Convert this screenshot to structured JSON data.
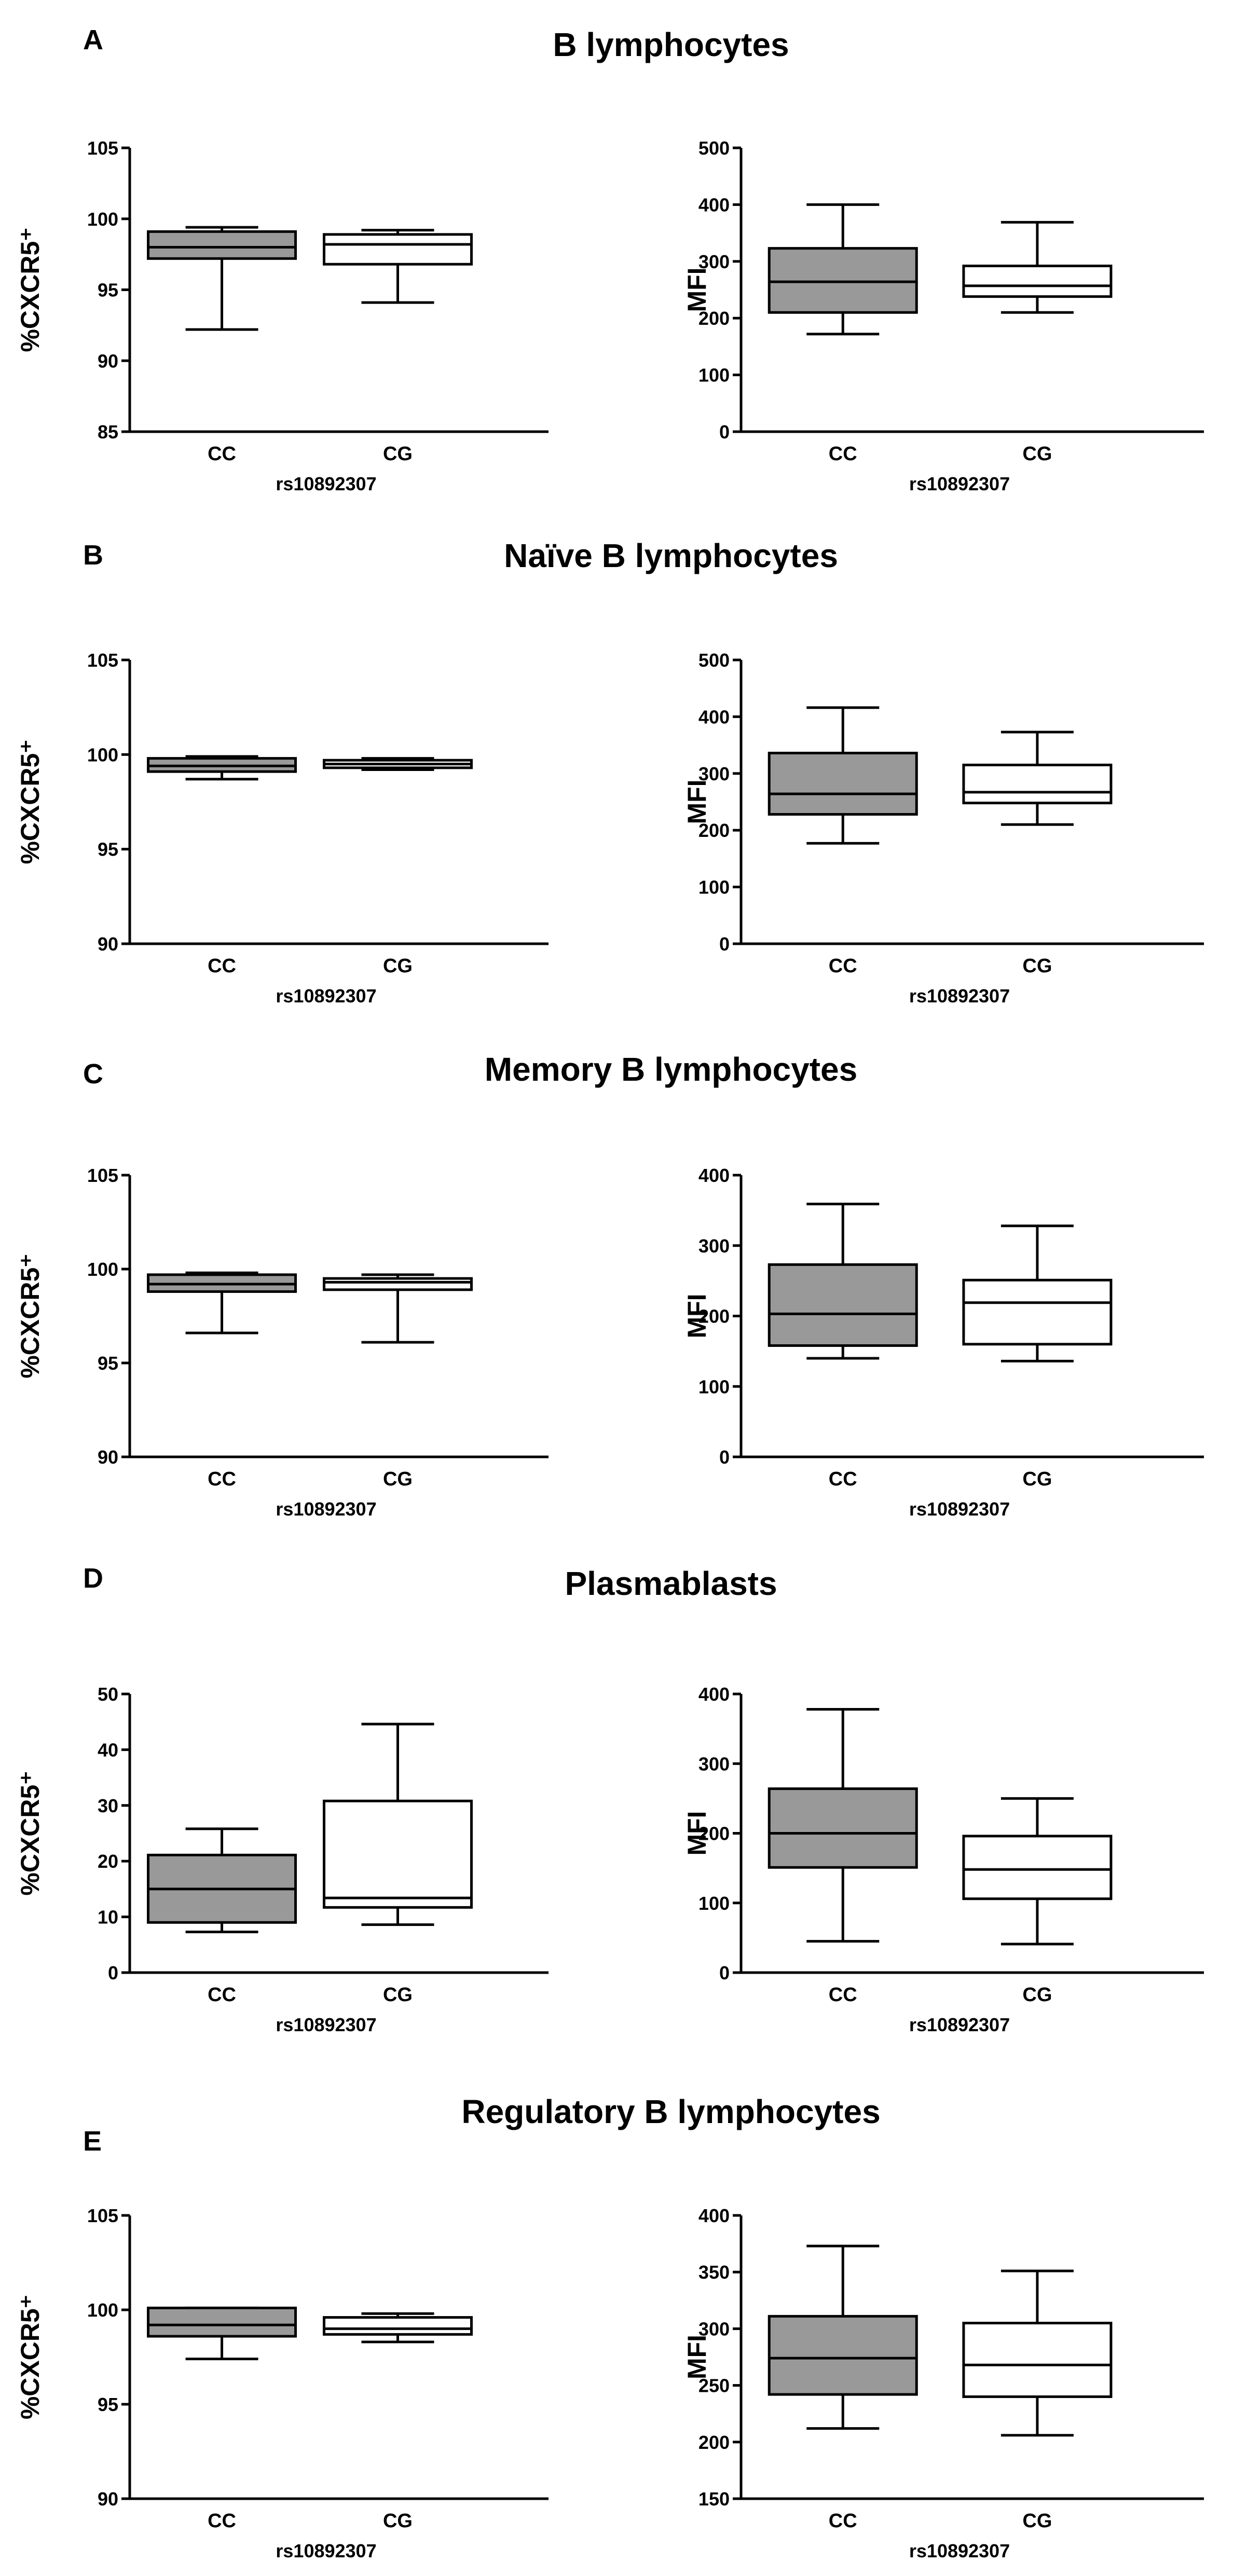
{
  "colors": {
    "cc_fill": "#999999",
    "cg_fill": "#ffffff",
    "stroke": "#000000"
  },
  "panels": [
    {
      "letter": "A",
      "title": "B lymphocytes"
    },
    {
      "letter": "B",
      "title": "Naïve B lymphocytes"
    },
    {
      "letter": "C",
      "title": "Memory B lymphocytes"
    },
    {
      "letter": "D",
      "title": "Plasmablasts"
    },
    {
      "letter": "E",
      "title": "Regulatory B lymphocytes"
    }
  ],
  "chart_data": [
    {
      "type": "box",
      "panel": "A",
      "side": "left",
      "xlabel": "rs10892307",
      "ylabel": "%CXCR5⁺",
      "categories": [
        "CC",
        "CG"
      ],
      "ylim": [
        85,
        105
      ],
      "yticks": [
        85,
        90,
        95,
        100,
        105
      ],
      "boxes": [
        {
          "min": 92.2,
          "q1": 97.2,
          "median": 98.0,
          "q3": 99.1,
          "max": 99.4
        },
        {
          "min": 94.1,
          "q1": 96.8,
          "median": 98.2,
          "q3": 98.9,
          "max": 99.2
        }
      ]
    },
    {
      "type": "box",
      "panel": "A",
      "side": "right",
      "xlabel": "rs10892307",
      "ylabel": "MFI",
      "categories": [
        "CC",
        "CG"
      ],
      "ylim": [
        0,
        500
      ],
      "yticks": [
        0,
        100,
        200,
        300,
        400,
        500
      ],
      "boxes": [
        {
          "min": 172,
          "q1": 210,
          "median": 264,
          "q3": 323,
          "max": 400
        },
        {
          "min": 210,
          "q1": 238,
          "median": 257,
          "q3": 292,
          "max": 369
        }
      ]
    },
    {
      "type": "box",
      "panel": "B",
      "side": "left",
      "xlabel": "rs10892307",
      "ylabel": "%CXCR5⁺",
      "categories": [
        "CC",
        "CG"
      ],
      "ylim": [
        90,
        105
      ],
      "yticks": [
        90,
        95,
        100,
        105
      ],
      "boxes": [
        {
          "min": 98.7,
          "q1": 99.1,
          "median": 99.4,
          "q3": 99.8,
          "max": 99.9
        },
        {
          "min": 99.2,
          "q1": 99.3,
          "median": 99.5,
          "q3": 99.7,
          "max": 99.8
        }
      ]
    },
    {
      "type": "box",
      "panel": "B",
      "side": "right",
      "xlabel": "rs10892307",
      "ylabel": "MFI",
      "categories": [
        "CC",
        "CG"
      ],
      "ylim": [
        0,
        500
      ],
      "yticks": [
        0,
        100,
        200,
        300,
        400,
        500
      ],
      "boxes": [
        {
          "min": 177,
          "q1": 228,
          "median": 264,
          "q3": 336,
          "max": 416
        },
        {
          "min": 210,
          "q1": 248,
          "median": 267,
          "q3": 315,
          "max": 373
        }
      ]
    },
    {
      "type": "box",
      "panel": "C",
      "side": "left",
      "xlabel": "rs10892307",
      "ylabel": "%CXCR5⁺",
      "categories": [
        "CC",
        "CG"
      ],
      "ylim": [
        90,
        105
      ],
      "yticks": [
        90,
        95,
        100,
        105
      ],
      "boxes": [
        {
          "min": 96.6,
          "q1": 98.8,
          "median": 99.2,
          "q3": 99.7,
          "max": 99.8
        },
        {
          "min": 96.1,
          "q1": 98.9,
          "median": 99.3,
          "q3": 99.5,
          "max": 99.7
        }
      ]
    },
    {
      "type": "box",
      "panel": "C",
      "side": "right",
      "xlabel": "rs10892307",
      "ylabel": "MFI",
      "categories": [
        "CC",
        "CG"
      ],
      "ylim": [
        0,
        400
      ],
      "yticks": [
        0,
        100,
        200,
        300,
        400
      ],
      "boxes": [
        {
          "min": 140,
          "q1": 158,
          "median": 203,
          "q3": 273,
          "max": 359
        },
        {
          "min": 136,
          "q1": 160,
          "median": 219,
          "q3": 251,
          "max": 328
        }
      ]
    },
    {
      "type": "box",
      "panel": "D",
      "side": "left",
      "xlabel": "rs10892307",
      "ylabel": "%CXCR5⁺",
      "categories": [
        "CC",
        "CG"
      ],
      "ylim": [
        0,
        50
      ],
      "yticks": [
        0,
        10,
        20,
        30,
        40,
        50
      ],
      "boxes": [
        {
          "min": 7.3,
          "q1": 9.0,
          "median": 15.0,
          "q3": 21.1,
          "max": 25.8
        },
        {
          "min": 8.6,
          "q1": 11.7,
          "median": 13.4,
          "q3": 30.8,
          "max": 44.6
        }
      ]
    },
    {
      "type": "box",
      "panel": "D",
      "side": "right",
      "xlabel": "rs10892307",
      "ylabel": "MFI",
      "categories": [
        "CC",
        "CG"
      ],
      "ylim": [
        0,
        400
      ],
      "yticks": [
        0,
        100,
        200,
        300,
        400
      ],
      "boxes": [
        {
          "min": 45,
          "q1": 151,
          "median": 200,
          "q3": 264,
          "max": 378
        },
        {
          "min": 41,
          "q1": 106,
          "median": 148,
          "q3": 196,
          "max": 250
        }
      ]
    },
    {
      "type": "box",
      "panel": "E",
      "side": "left",
      "xlabel": "rs10892307",
      "ylabel": "%CXCR5⁺",
      "categories": [
        "CC",
        "CG"
      ],
      "ylim": [
        90,
        105
      ],
      "yticks": [
        90,
        95,
        100,
        105
      ],
      "boxes": [
        {
          "min": 97.4,
          "q1": 98.6,
          "median": 99.2,
          "q3": 100.1,
          "max": 100.1
        },
        {
          "min": 98.3,
          "q1": 98.7,
          "median": 99.0,
          "q3": 99.6,
          "max": 99.8
        }
      ]
    },
    {
      "type": "box",
      "panel": "E",
      "side": "right",
      "xlabel": "rs10892307",
      "ylabel": "MFI",
      "categories": [
        "CC",
        "CG"
      ],
      "ylim": [
        150,
        400
      ],
      "yticks": [
        150,
        200,
        250,
        300,
        350,
        400
      ],
      "boxes": [
        {
          "min": 212,
          "q1": 242,
          "median": 274,
          "q3": 311,
          "max": 373
        },
        {
          "min": 206,
          "q1": 240,
          "median": 268,
          "q3": 305,
          "max": 351
        }
      ]
    }
  ]
}
